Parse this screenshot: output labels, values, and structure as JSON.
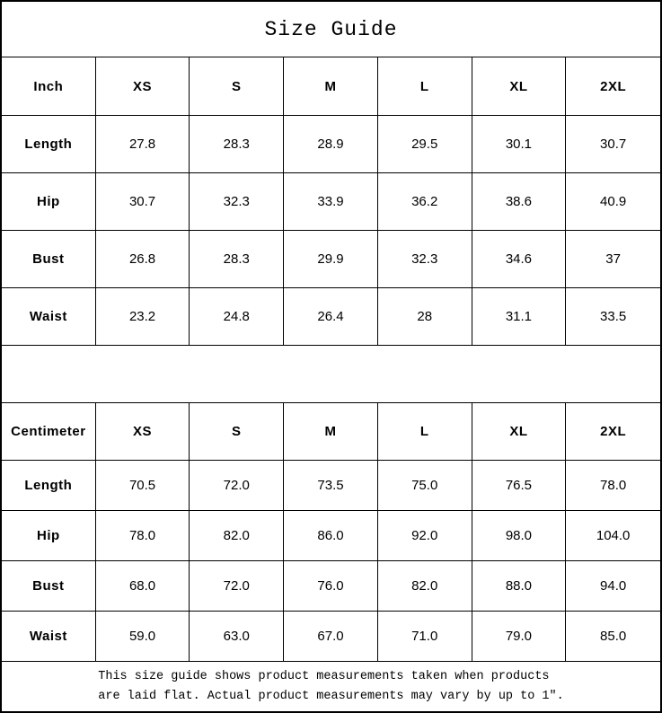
{
  "title": "Size Guide",
  "sizes": [
    "XS",
    "S",
    "M",
    "L",
    "XL",
    "2XL"
  ],
  "tables": [
    {
      "unit": "Inch",
      "rows": [
        {
          "label": "Length",
          "values": [
            "27.8",
            "28.3",
            "28.9",
            "29.5",
            "30.1",
            "30.7"
          ]
        },
        {
          "label": "Hip",
          "values": [
            "30.7",
            "32.3",
            "33.9",
            "36.2",
            "38.6",
            "40.9"
          ]
        },
        {
          "label": "Bust",
          "values": [
            "26.8",
            "28.3",
            "29.9",
            "32.3",
            "34.6",
            "37"
          ]
        },
        {
          "label": "Waist",
          "values": [
            "23.2",
            "24.8",
            "26.4",
            "28",
            "31.1",
            "33.5"
          ]
        }
      ]
    },
    {
      "unit": "Centimeter",
      "rows": [
        {
          "label": "Length",
          "values": [
            "70.5",
            "72.0",
            "73.5",
            "75.0",
            "76.5",
            "78.0"
          ]
        },
        {
          "label": "Hip",
          "values": [
            "78.0",
            "82.0",
            "86.0",
            "92.0",
            "98.0",
            "104.0"
          ]
        },
        {
          "label": "Bust",
          "values": [
            "68.0",
            "72.0",
            "76.0",
            "82.0",
            "88.0",
            "94.0"
          ]
        },
        {
          "label": "Waist",
          "values": [
            "59.0",
            "63.0",
            "67.0",
            "71.0",
            "79.0",
            "85.0"
          ]
        }
      ]
    }
  ],
  "footer": {
    "line1": "This size guide shows product measurements taken when products",
    "line2": "are laid flat. Actual product measurements may vary by up to 1″."
  },
  "colors": {
    "border": "#000000",
    "background": "#ffffff",
    "text": "#000000"
  }
}
